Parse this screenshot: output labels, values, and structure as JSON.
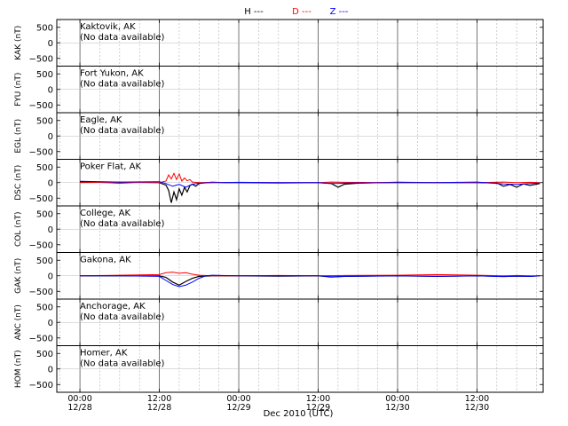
{
  "legend": {
    "items": [
      {
        "label": "H ---",
        "color": "#000000"
      },
      {
        "label": "D ---",
        "color": "#ff0000"
      },
      {
        "label": "Z ---",
        "color": "#0000ff"
      }
    ]
  },
  "colors": {
    "H": "#000000",
    "D": "#ff0000",
    "Z": "#0000ff",
    "grid": "#b0b0b0"
  },
  "xlabel": "Dec 2010 (UTC)",
  "chart_data": [
    {
      "type": "line",
      "station": "Kaktovik, AK",
      "ylabel": "KAK (nT)",
      "note": "(No data available)",
      "ylim": [
        -750,
        750
      ],
      "yticks": [
        500,
        0,
        -500
      ],
      "series": []
    },
    {
      "type": "line",
      "station": "Fort Yukon, AK",
      "ylabel": "FYU (nT)",
      "note": "(No data available)",
      "ylim": [
        -750,
        750
      ],
      "yticks": [
        500,
        0,
        -500
      ],
      "series": []
    },
    {
      "type": "line",
      "station": "Eagle, AK",
      "ylabel": "EGL (nT)",
      "note": "(No data available)",
      "ylim": [
        -750,
        750
      ],
      "yticks": [
        500,
        0,
        -500
      ],
      "series": []
    },
    {
      "type": "line",
      "station": "Poker Flat, AK",
      "ylabel": "DSC (nT)",
      "note": "",
      "ylim": [
        -750,
        750
      ],
      "yticks": [
        500,
        0,
        -500
      ],
      "series": [
        {
          "key": "H",
          "x": [
            0,
            3,
            6,
            9,
            12,
            13,
            13.4,
            13.8,
            14.2,
            14.6,
            15,
            15.4,
            15.8,
            16.2,
            16.6,
            17,
            17.5,
            18,
            19,
            20,
            22,
            24,
            30,
            36,
            38,
            39,
            40,
            42,
            45,
            48,
            54,
            60,
            63,
            64,
            65,
            66,
            67,
            68,
            69.5
          ],
          "y": [
            20,
            10,
            -10,
            10,
            0,
            -80,
            -250,
            -650,
            -300,
            -550,
            -200,
            -400,
            -150,
            -300,
            -100,
            -50,
            -120,
            -30,
            0,
            10,
            0,
            0,
            -10,
            0,
            -30,
            -150,
            -50,
            -20,
            0,
            10,
            0,
            0,
            -10,
            -120,
            -60,
            -150,
            -40,
            -90,
            -30
          ]
        },
        {
          "key": "D",
          "x": [
            0,
            6,
            12,
            13,
            13.4,
            13.8,
            14.2,
            14.6,
            15,
            15.4,
            15.8,
            16.2,
            16.6,
            17,
            18,
            20,
            24,
            30,
            36,
            38,
            40,
            48,
            54,
            60,
            64,
            66,
            68,
            69.5
          ],
          "y": [
            0,
            10,
            0,
            50,
            250,
            120,
            300,
            100,
            280,
            50,
            150,
            60,
            100,
            20,
            0,
            10,
            0,
            0,
            0,
            20,
            10,
            0,
            0,
            0,
            20,
            0,
            10,
            0
          ]
        },
        {
          "key": "Z",
          "x": [
            0,
            6,
            12,
            13,
            14,
            15,
            16,
            17,
            18,
            20,
            24,
            30,
            36,
            38,
            40,
            48,
            54,
            60,
            64,
            66,
            68,
            69.5
          ],
          "y": [
            40,
            20,
            30,
            -30,
            -120,
            -60,
            -150,
            -50,
            -20,
            0,
            10,
            0,
            0,
            -30,
            -20,
            0,
            0,
            20,
            -40,
            -60,
            -30,
            -20
          ]
        }
      ]
    },
    {
      "type": "line",
      "station": "College, AK",
      "ylabel": "COL (nT)",
      "note": "(No data available)",
      "ylim": [
        -750,
        750
      ],
      "yticks": [
        500,
        0,
        -500
      ],
      "series": []
    },
    {
      "type": "line",
      "station": "Gakona, AK",
      "ylabel": "GAK (nT)",
      "note": "",
      "ylim": [
        -750,
        750
      ],
      "yticks": [
        500,
        0,
        -500
      ],
      "series": [
        {
          "key": "H",
          "x": [
            0,
            6,
            12,
            13,
            14,
            15,
            16,
            17,
            18,
            20,
            24,
            30,
            36,
            38,
            40,
            48,
            54,
            60,
            64,
            66,
            68,
            69.5
          ],
          "y": [
            0,
            0,
            0,
            -50,
            -200,
            -300,
            -180,
            -80,
            -20,
            0,
            0,
            -10,
            0,
            -40,
            -20,
            0,
            -20,
            0,
            -20,
            -10,
            -20,
            0
          ]
        },
        {
          "key": "D",
          "x": [
            0,
            6,
            12,
            13,
            14,
            15,
            16,
            17,
            18,
            20,
            24,
            30,
            36,
            40,
            48,
            54,
            60,
            64,
            66,
            68,
            69.5
          ],
          "y": [
            0,
            20,
            40,
            100,
            120,
            80,
            100,
            50,
            20,
            0,
            0,
            10,
            0,
            10,
            20,
            40,
            20,
            0,
            10,
            0,
            0
          ]
        },
        {
          "key": "Z",
          "x": [
            0,
            6,
            12,
            13,
            14,
            15,
            16,
            17,
            18,
            19,
            20,
            24,
            30,
            36,
            38,
            40,
            48,
            54,
            60,
            64,
            66,
            68,
            69.5
          ],
          "y": [
            0,
            0,
            -20,
            -150,
            -280,
            -350,
            -300,
            -200,
            -80,
            0,
            20,
            0,
            0,
            0,
            -30,
            -20,
            0,
            -20,
            0,
            -30,
            -10,
            -20,
            0
          ]
        }
      ]
    },
    {
      "type": "line",
      "station": "Anchorage, AK",
      "ylabel": "ANC (nT)",
      "note": "(No data available)",
      "ylim": [
        -750,
        750
      ],
      "yticks": [
        500,
        0,
        -500
      ],
      "series": []
    },
    {
      "type": "line",
      "station": "Homer, AK",
      "ylabel": "HOM (nT)",
      "note": "(No data available)",
      "ylim": [
        -750,
        750
      ],
      "yticks": [
        500,
        0,
        -500
      ],
      "series": []
    }
  ],
  "xaxis": {
    "range_hours": [
      -3.5,
      70
    ],
    "major_hours": [
      0,
      12,
      24,
      36,
      48,
      60
    ],
    "minor_step_hours": 3,
    "tick_time_labels": [
      "00:00",
      "12:00",
      "00:00",
      "12:00",
      "00:00",
      "12:00"
    ],
    "tick_date_labels": [
      "12/28",
      "12/28",
      "12/29",
      "12/29",
      "12/30",
      "12/30"
    ]
  }
}
